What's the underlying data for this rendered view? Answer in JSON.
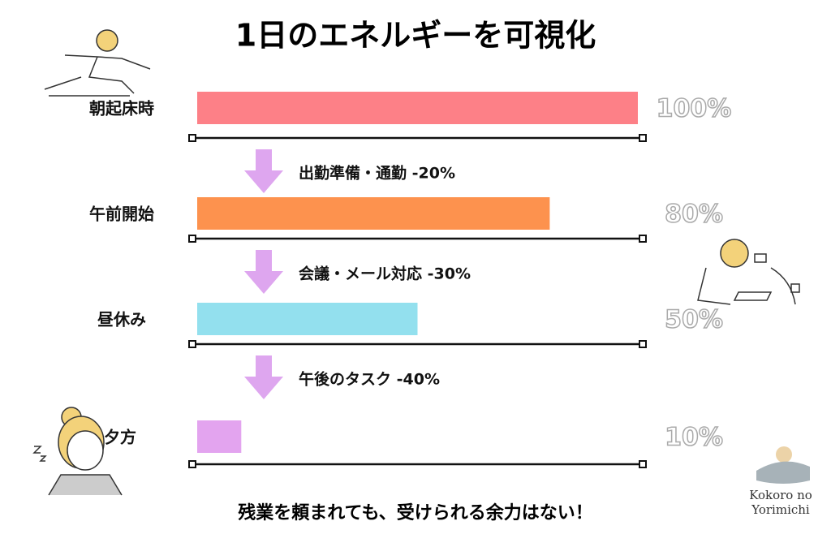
{
  "chart_data": {
    "type": "bar",
    "title": "1日のエネルギーを可視化",
    "categories": [
      "朝起床時",
      "午前開始",
      "昼休み",
      "夕方"
    ],
    "values": [
      100,
      80,
      50,
      10
    ],
    "value_labels": [
      "100%",
      "80%",
      "50%",
      "10%"
    ],
    "colors": [
      "#fd8087",
      "#fd924e",
      "#93e0ee",
      "#e3a4ef"
    ],
    "xlim": [
      0,
      100
    ],
    "transitions": [
      "出勤準備・通勤 -20%",
      "会議・メール対応 -30%",
      "午後のタスク -40%"
    ],
    "footer": "残業を頼まれても、受けられる余力はない！",
    "brand": [
      "Kokoro no",
      "Yorimichi"
    ]
  }
}
